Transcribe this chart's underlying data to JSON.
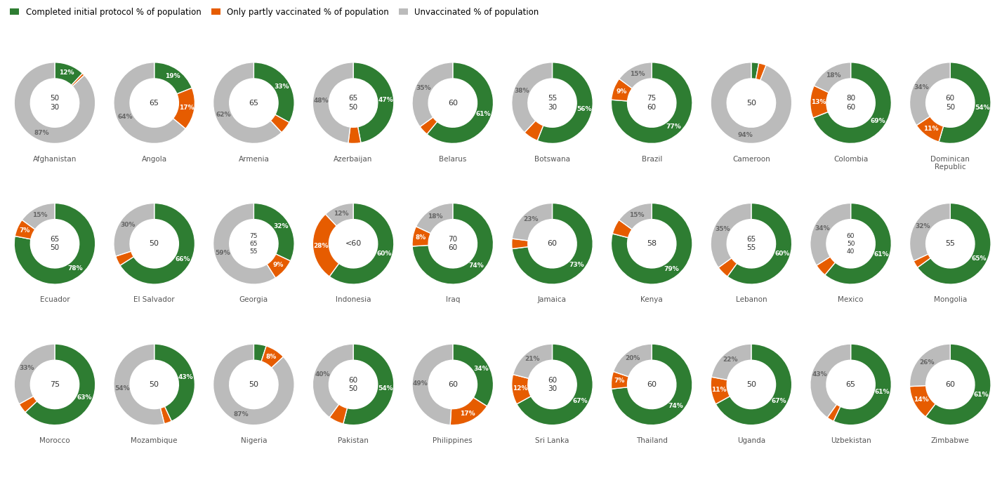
{
  "countries": [
    {
      "name": "Afghanistan",
      "label": "50\n30",
      "completed": 12,
      "partial": 1,
      "unvaccinated": 87,
      "clbl": "12%",
      "plbl": "",
      "ulbl": "87%"
    },
    {
      "name": "Angola",
      "label": "65",
      "completed": 19,
      "partial": 17,
      "unvaccinated": 64,
      "clbl": "19%",
      "plbl": "17%",
      "ulbl": "64%"
    },
    {
      "name": "Armenia",
      "label": "65",
      "completed": 33,
      "partial": 5,
      "unvaccinated": 62,
      "clbl": "33%",
      "plbl": "",
      "ulbl": "62%"
    },
    {
      "name": "Azerbaijan",
      "label": "65\n50",
      "completed": 47,
      "partial": 5,
      "unvaccinated": 48,
      "clbl": "47%",
      "plbl": "",
      "ulbl": "48%"
    },
    {
      "name": "Belarus",
      "label": "60",
      "completed": 61,
      "partial": 4,
      "unvaccinated": 35,
      "clbl": "61%",
      "plbl": "",
      "ulbl": "35%"
    },
    {
      "name": "Botswana",
      "label": "55\n30",
      "completed": 56,
      "partial": 6,
      "unvaccinated": 38,
      "clbl": "56%",
      "plbl": "",
      "ulbl": "38%"
    },
    {
      "name": "Brazil",
      "label": "75\n60",
      "completed": 77,
      "partial": 9,
      "unvaccinated": 15,
      "clbl": "77%",
      "plbl": "9%",
      "ulbl": "15%"
    },
    {
      "name": "Cameroon",
      "label": "50",
      "completed": 3,
      "partial": 3,
      "unvaccinated": 94,
      "clbl": "",
      "plbl": "",
      "ulbl": "94%"
    },
    {
      "name": "Colombia",
      "label": "80\n60",
      "completed": 69,
      "partial": 13,
      "unvaccinated": 18,
      "clbl": "69%",
      "plbl": "13%",
      "ulbl": "18%"
    },
    {
      "name": "Dominican\nRepublic",
      "label": "60\n50",
      "completed": 54,
      "partial": 11,
      "unvaccinated": 34,
      "clbl": "54%",
      "plbl": "11%",
      "ulbl": "34%"
    },
    {
      "name": "Ecuador",
      "label": "65\n50",
      "completed": 78,
      "partial": 7,
      "unvaccinated": 15,
      "clbl": "78%",
      "plbl": "7%",
      "ulbl": "15%"
    },
    {
      "name": "El Salvador",
      "label": "50",
      "completed": 66,
      "partial": 4,
      "unvaccinated": 30,
      "clbl": "66%",
      "plbl": "",
      "ulbl": "30%"
    },
    {
      "name": "Georgia",
      "label": "75\n65\n55",
      "completed": 32,
      "partial": 9,
      "unvaccinated": 59,
      "clbl": "32%",
      "plbl": "9%",
      "ulbl": "59%"
    },
    {
      "name": "Indonesia",
      "label": "<60",
      "completed": 60,
      "partial": 28,
      "unvaccinated": 12,
      "clbl": "60%",
      "plbl": "28%",
      "ulbl": "12%"
    },
    {
      "name": "Iraq",
      "label": "70\n60",
      "completed": 74,
      "partial": 8,
      "unvaccinated": 18,
      "clbl": "74%",
      "plbl": "8%",
      "ulbl": "18%"
    },
    {
      "name": "Jamaica",
      "label": "60",
      "completed": 73,
      "partial": 4,
      "unvaccinated": 23,
      "clbl": "73%",
      "plbl": "",
      "ulbl": "23%"
    },
    {
      "name": "Kenya",
      "label": "58",
      "completed": 79,
      "partial": 6,
      "unvaccinated": 15,
      "clbl": "79%",
      "plbl": "",
      "ulbl": "15%"
    },
    {
      "name": "Lebanon",
      "label": "65\n55",
      "completed": 60,
      "partial": 5,
      "unvaccinated": 35,
      "clbl": "60%",
      "plbl": "",
      "ulbl": "35%"
    },
    {
      "name": "Mexico",
      "label": "60\n50\n40",
      "completed": 61,
      "partial": 5,
      "unvaccinated": 34,
      "clbl": "61%",
      "plbl": "",
      "ulbl": "34%"
    },
    {
      "name": "Mongolia",
      "label": "55",
      "completed": 65,
      "partial": 3,
      "unvaccinated": 32,
      "clbl": "65%",
      "plbl": "",
      "ulbl": "32%"
    },
    {
      "name": "Morocco",
      "label": "75",
      "completed": 63,
      "partial": 4,
      "unvaccinated": 33,
      "clbl": "63%",
      "plbl": "",
      "ulbl": "33%"
    },
    {
      "name": "Mozambique",
      "label": "50",
      "completed": 43,
      "partial": 3,
      "unvaccinated": 54,
      "clbl": "43%",
      "plbl": "",
      "ulbl": "54%"
    },
    {
      "name": "Nigeria",
      "label": "50",
      "completed": 5,
      "partial": 8,
      "unvaccinated": 87,
      "clbl": "",
      "plbl": "8%",
      "ulbl": "87%"
    },
    {
      "name": "Pakistan",
      "label": "60\n50",
      "completed": 54,
      "partial": 6,
      "unvaccinated": 40,
      "clbl": "54%",
      "plbl": "",
      "ulbl": "40%"
    },
    {
      "name": "Philippines",
      "label": "60",
      "completed": 34,
      "partial": 17,
      "unvaccinated": 49,
      "clbl": "34%",
      "plbl": "17%",
      "ulbl": "49%"
    },
    {
      "name": "Sri Lanka",
      "label": "60\n30",
      "completed": 67,
      "partial": 12,
      "unvaccinated": 21,
      "clbl": "67%",
      "plbl": "12%",
      "ulbl": "21%"
    },
    {
      "name": "Thailand",
      "label": "60",
      "completed": 74,
      "partial": 7,
      "unvaccinated": 20,
      "clbl": "74%",
      "plbl": "7%",
      "ulbl": "20%"
    },
    {
      "name": "Uganda",
      "label": "50",
      "completed": 67,
      "partial": 11,
      "unvaccinated": 22,
      "clbl": "67%",
      "plbl": "11%",
      "ulbl": "22%"
    },
    {
      "name": "Uzbekistan",
      "label": "65",
      "completed": 61,
      "partial": 3,
      "unvaccinated": 43,
      "clbl": "61%",
      "plbl": "",
      "ulbl": "43%"
    },
    {
      "name": "Zimbabwe",
      "label": "60",
      "completed": 61,
      "partial": 14,
      "unvaccinated": 26,
      "clbl": "61%",
      "plbl": "14%",
      "ulbl": "26%"
    }
  ],
  "color_completed": "#2e7d32",
  "color_partial": "#e65c00",
  "color_unvac": "#bbbbbb",
  "color_bg": "#ffffff",
  "ncols": 10,
  "nrows": 3
}
